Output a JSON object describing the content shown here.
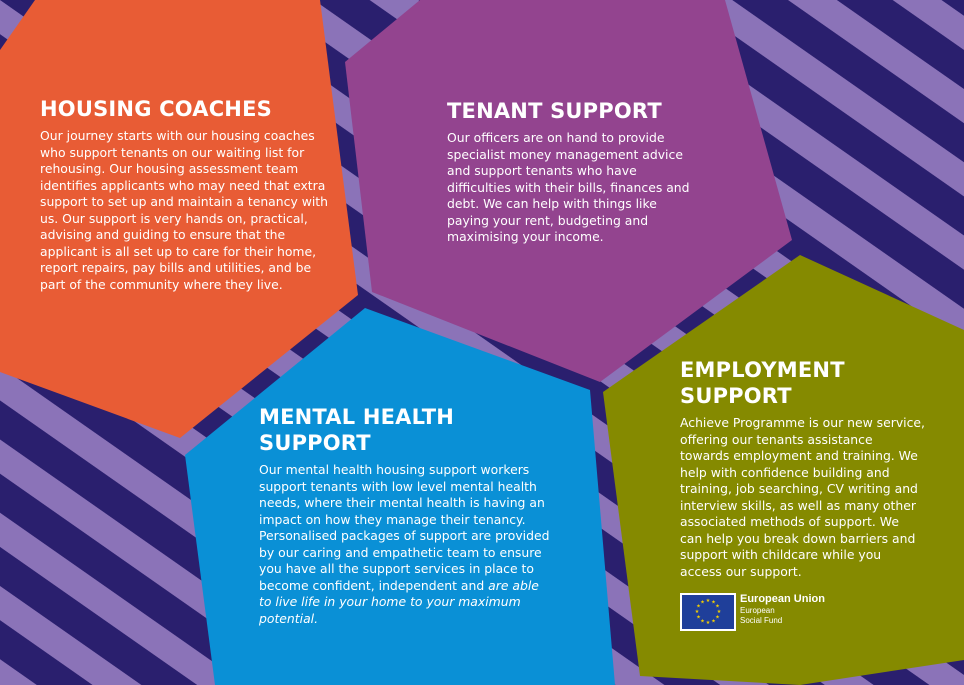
{
  "colors": {
    "background": "#2a1f6e",
    "stripes": "#8b73b8",
    "housing": "#e85c35",
    "tenant": "#93448f",
    "mental": "#0a90d6",
    "employment": "#858a00"
  },
  "housing": {
    "title": "HOUSING COACHES",
    "body": "Our journey starts with our housing coaches who support tenants on our waiting list for rehousing. Our housing assessment team identifies applicants who may need that extra support to set up and maintain a tenancy with us. Our support is very hands on, practical, advising and guiding to ensure that the applicant is all set up to care for their home, report repairs, pay bills and utilities, and be part of the community where they live."
  },
  "tenant": {
    "title": "TENANT SUPPORT",
    "body": "Our officers are on hand to provide specialist money management advice and support tenants who have difficulties with their bills, finances and debt. We can help with things like paying your rent, budgeting and maximising your income."
  },
  "mental": {
    "title_line1": "MENTAL HEALTH",
    "title_line2": "SUPPORT",
    "body": "Our mental health housing support workers support tenants with low level mental health needs, where their mental health is having an impact on how they manage their tenancy. Personalised packages of support are provided by our caring and empathetic team to ensure you have all the support services in place to become confident, independent and ",
    "body_italic": "are able to live life in your home to your maximum potential."
  },
  "employment": {
    "title_line1": "EMPLOYMENT",
    "title_line2": "SUPPORT",
    "body": "Achieve Programme is our new service, offering our tenants assistance towards employment and training. We help with confidence building and training, job searching, CV writing and interview skills, as well as many other associated methods of support. We can help you break down barriers and support with childcare while you access our support."
  },
  "eu_logo": {
    "name": "European Union",
    "line2": "European",
    "line3": "Social Fund",
    "icon": "eu-flag-icon"
  }
}
